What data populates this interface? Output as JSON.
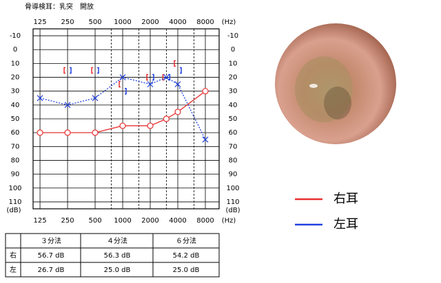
{
  "chart_data": {
    "type": "audiogram",
    "title": "骨導検耳：乳突　開放",
    "x_label": "(Hz)",
    "y_label": "(dB)",
    "x_scale": "log",
    "y_inverted": true,
    "xlim": [
      105,
      11314
    ],
    "ylim": [
      -15,
      115
    ],
    "xticks": [
      125,
      250,
      500,
      1000,
      2000,
      4000,
      8000
    ],
    "minor_xticks": [
      750,
      1500,
      3000,
      6000
    ],
    "yticks": [
      -10,
      0,
      10,
      20,
      30,
      40,
      50,
      60,
      70,
      80,
      90,
      100,
      110
    ],
    "grid": true,
    "series": [
      {
        "name": "右耳",
        "color": "#e83030",
        "line": "solid",
        "marker": "circle",
        "x": [
          125,
          250,
          500,
          1000,
          2000,
          3000,
          4000,
          8000
        ],
        "values": [
          60,
          60,
          60,
          55,
          55,
          50,
          45,
          30
        ],
        "bone_marker": "left",
        "bone_x": [
          250,
          500,
          1000,
          2000,
          3000,
          4000
        ],
        "bone_values": [
          15,
          15,
          25,
          20,
          20,
          10
        ]
      },
      {
        "name": "左耳",
        "color": "#2040e0",
        "line": "dotted",
        "marker": "cross",
        "x": [
          125,
          250,
          500,
          1000,
          2000,
          3000,
          4000,
          8000
        ],
        "values": [
          35,
          40,
          35,
          20,
          25,
          20,
          25,
          65
        ],
        "bone_marker": "right",
        "bone_x": [
          250,
          500,
          1000,
          2000,
          3000,
          4000
        ],
        "bone_values": [
          15,
          15,
          30,
          20,
          20,
          15
        ]
      }
    ]
  },
  "table": {
    "headers": [
      "３分法",
      "４分法",
      "６分法"
    ],
    "rows": [
      [
        "右",
        "56.7 dB",
        "56.3 dB",
        "54.2 dB"
      ],
      [
        "左",
        "26.7 dB",
        "25.0 dB",
        "25.0 dB"
      ]
    ]
  }
}
